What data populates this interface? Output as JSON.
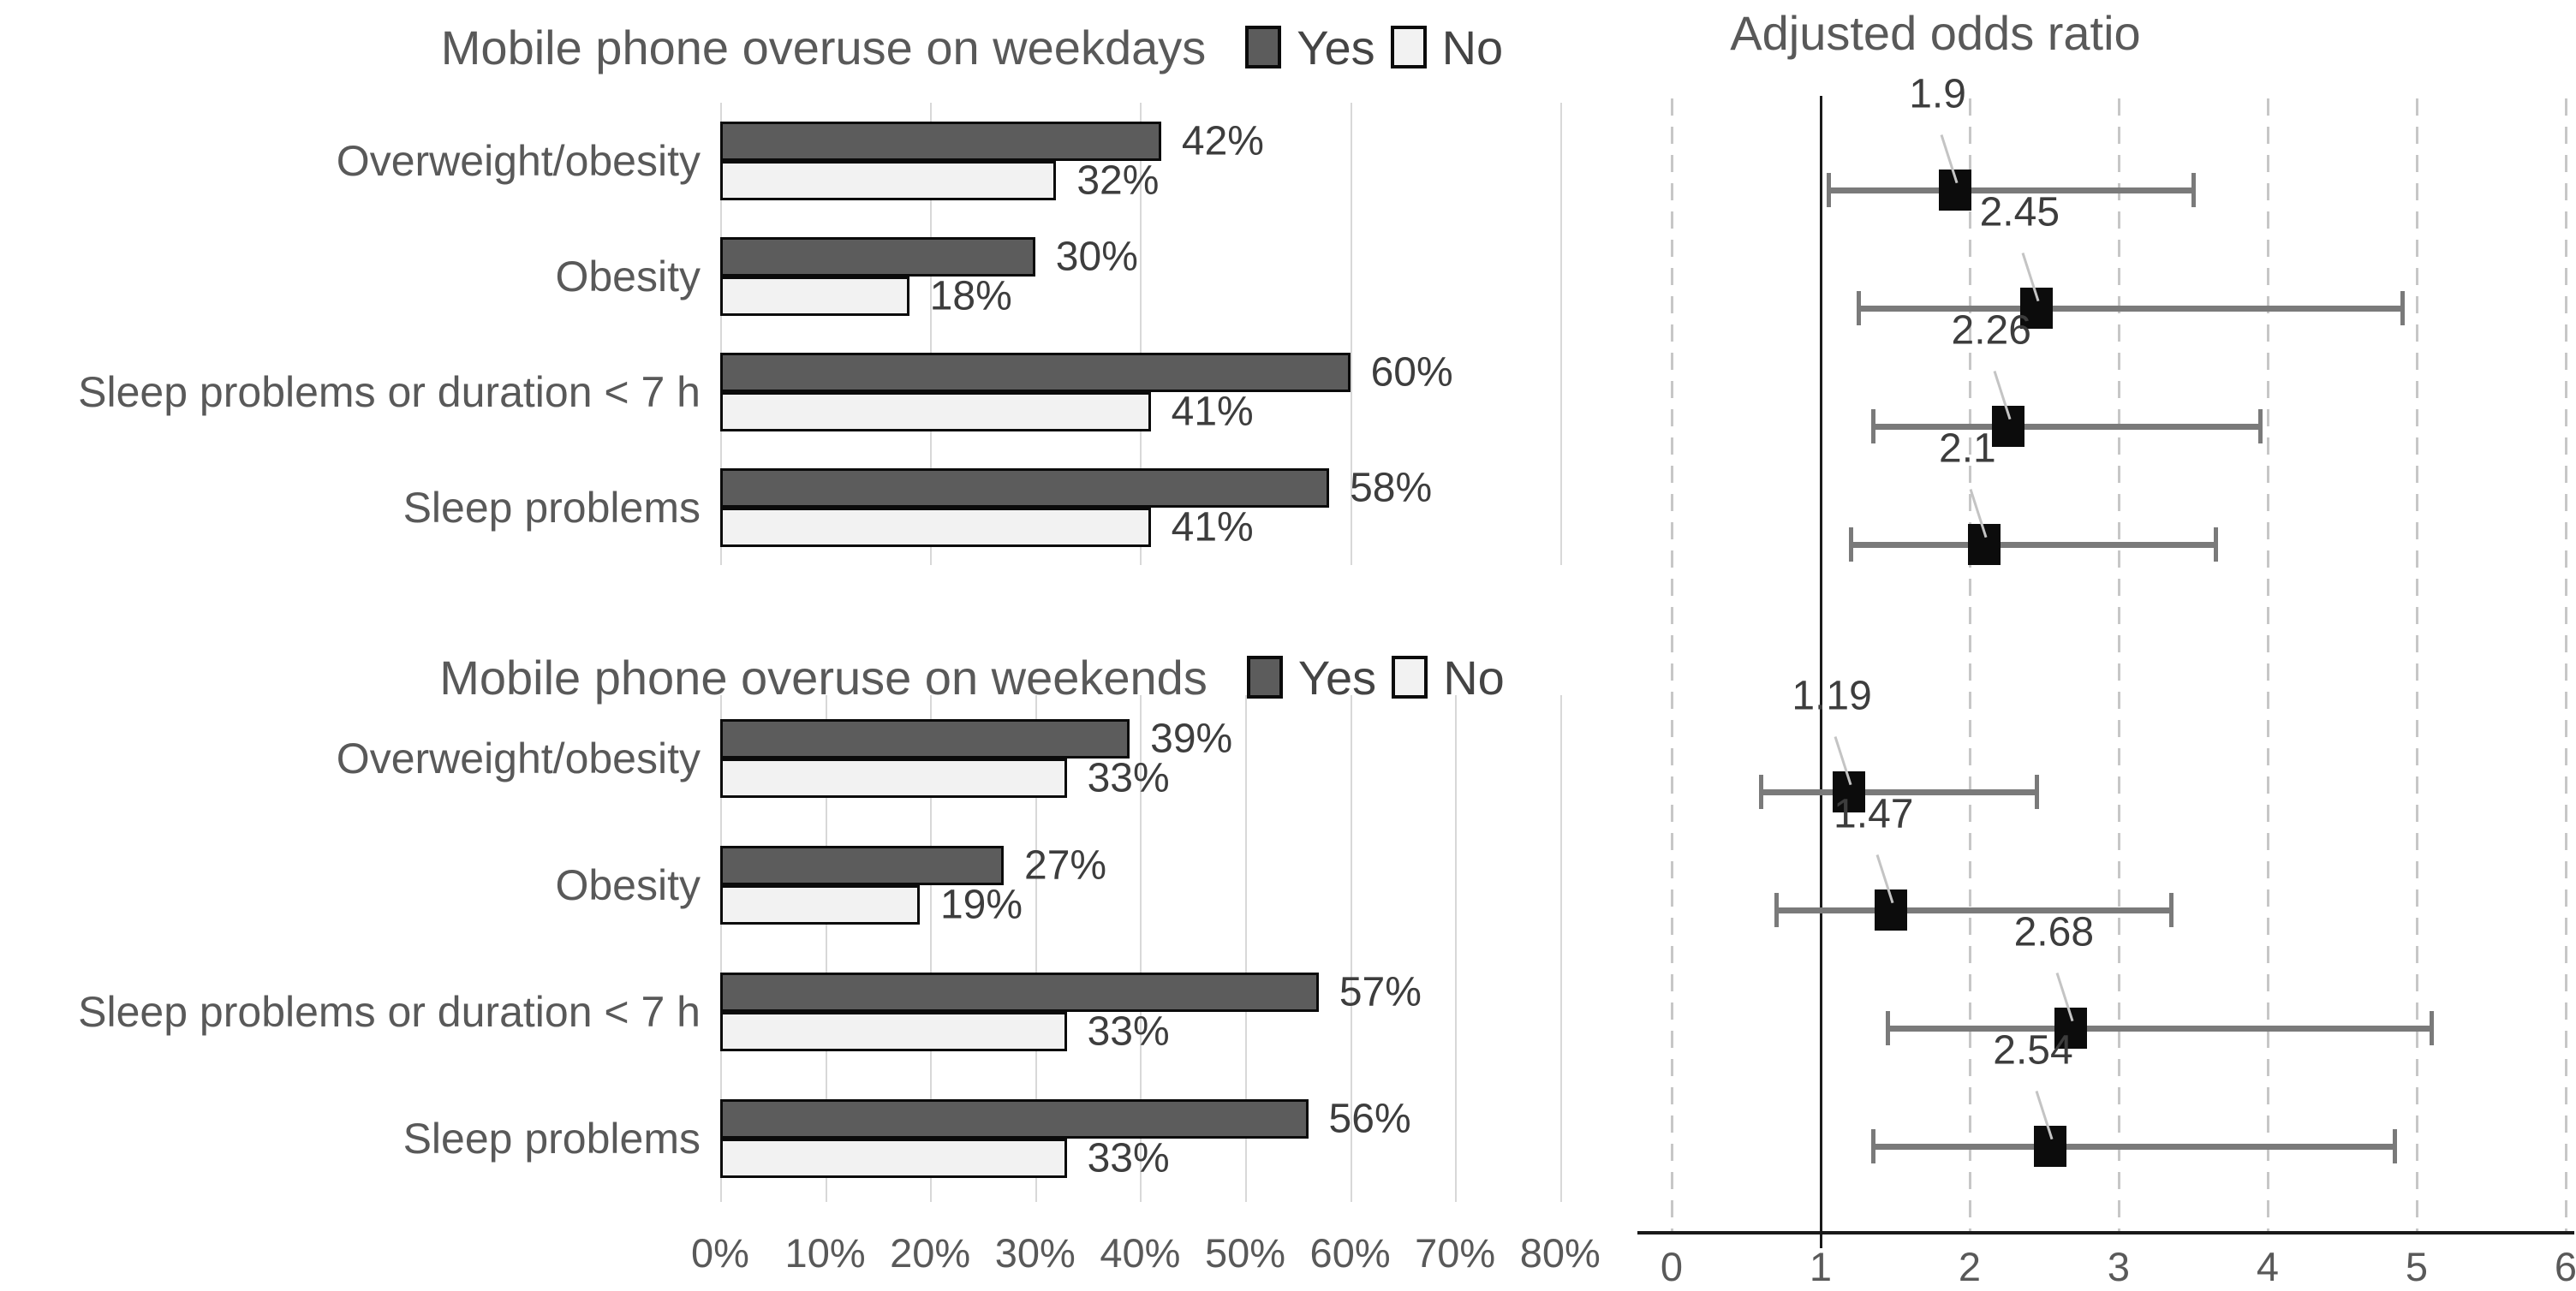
{
  "colors": {
    "bar_yes": "#5c5c5c",
    "bar_no": "#f2f2f2",
    "bar_border": "#0b0b0b",
    "left_gridline": "#d8d8d8",
    "dashed_gridline": "#c7c7c7",
    "reference_line": "#1a1a1a",
    "whisker": "#7a7a7a",
    "marker": "#0c0c0c",
    "heading_text": "#595959",
    "value_text": "#3d3d3d"
  },
  "chart_data": [
    {
      "type": "bar",
      "orientation": "horizontal",
      "title": "Mobile phone overuse on weekdays",
      "legend": [
        "Yes",
        "No"
      ],
      "legend_position": "top-right",
      "categories": [
        "Overweight/obesity",
        "Obesity",
        "Sleep problems or duration < 7 h",
        "Sleep problems"
      ],
      "series": [
        {
          "name": "Yes",
          "values": [
            42,
            30,
            60,
            58
          ]
        },
        {
          "name": "No",
          "values": [
            32,
            18,
            41,
            41
          ]
        }
      ],
      "value_suffix": "%",
      "xlim": [
        0,
        80
      ],
      "grid_step_pct": 20,
      "grid_on": true,
      "x_tick_labels": []
    },
    {
      "type": "bar",
      "orientation": "horizontal",
      "title": "Mobile phone overuse on weekends",
      "legend": [
        "Yes",
        "No"
      ],
      "legend_position": "top-right",
      "categories": [
        "Overweight/obesity",
        "Obesity",
        "Sleep problems or duration < 7 h",
        "Sleep problems"
      ],
      "series": [
        {
          "name": "Yes",
          "values": [
            39,
            27,
            57,
            56
          ]
        },
        {
          "name": "No",
          "values": [
            33,
            19,
            33,
            33
          ]
        }
      ],
      "value_suffix": "%",
      "xlim": [
        0,
        80
      ],
      "grid_step_pct": 10,
      "grid_on": true,
      "x_tick_labels": [
        "0%",
        "10%",
        "20%",
        "30%",
        "40%",
        "50%",
        "60%",
        "70%",
        "80%"
      ]
    },
    {
      "type": "scatter",
      "subtype": "forest",
      "title": "Adjusted odds ratio",
      "xlim": [
        0,
        6
      ],
      "x_tick_labels": [
        "0",
        "1",
        "2",
        "3",
        "4",
        "5",
        "6"
      ],
      "reference_line_x": 1,
      "grid_on": true,
      "points": [
        {
          "group": "weekdays",
          "category": "Overweight/obesity",
          "label": "1.9",
          "or": 1.9,
          "ci_low": 1.05,
          "ci_high": 3.5
        },
        {
          "group": "weekdays",
          "category": "Obesity",
          "label": "2.45",
          "or": 2.45,
          "ci_low": 1.25,
          "ci_high": 4.9
        },
        {
          "group": "weekdays",
          "category": "Sleep problems or duration < 7 h",
          "label": "2.26",
          "or": 2.26,
          "ci_low": 1.35,
          "ci_high": 3.95
        },
        {
          "group": "weekdays",
          "category": "Sleep problems",
          "label": "2.1",
          "or": 2.1,
          "ci_low": 1.2,
          "ci_high": 3.65
        },
        {
          "group": "weekends",
          "category": "Overweight/obesity",
          "label": "1.19",
          "or": 1.19,
          "ci_low": 0.6,
          "ci_high": 2.45
        },
        {
          "group": "weekends",
          "category": "Obesity",
          "label": "1.47",
          "or": 1.47,
          "ci_low": 0.7,
          "ci_high": 3.35
        },
        {
          "group": "weekends",
          "category": "Sleep problems or duration < 7 h",
          "label": "2.68",
          "or": 2.68,
          "ci_low": 1.45,
          "ci_high": 5.1
        },
        {
          "group": "weekends",
          "category": "Sleep problems",
          "label": "2.54",
          "or": 2.54,
          "ci_low": 1.35,
          "ci_high": 4.85
        }
      ]
    }
  ]
}
